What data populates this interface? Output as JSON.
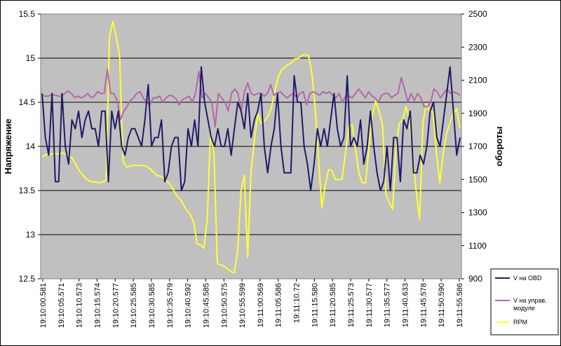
{
  "chart_data": {
    "type": "line",
    "ylabel_left": "Напряжение",
    "ylabel_right": "обороты",
    "y_left_lim": [
      12.5,
      15.5
    ],
    "y_right_lim": [
      900,
      2500
    ],
    "y_left_ticks": [
      "12.5",
      "13",
      "13.5",
      "14",
      "14.5",
      "15",
      "15.5"
    ],
    "y_right_ticks": [
      "900",
      "1100",
      "1300",
      "1500",
      "1700",
      "1900",
      "2100",
      "2300",
      "2500"
    ],
    "x_tick_labels": [
      "19:10:00.581",
      "19:10:05.571",
      "19:10:10.573",
      "19:10:15.574",
      "19:10:20.577",
      "19:10:25.585",
      "19:10:30.585",
      "19:10:35.579",
      "19:10:40.592",
      "19:10:45.585",
      "19:10:50.575",
      "19:10:55.599",
      "19:11:00.569",
      "19:11:05.586",
      "19:11:10.72",
      "19:11:15.580",
      "19:11:20.585",
      "19:11:25.573",
      "19:11:30.577",
      "19:11:35.577",
      "19:11:40.633",
      "19:11:45.578",
      "19:11:50.590",
      "19:11:55.586"
    ],
    "grid": "horizontal",
    "legend_position": "right",
    "plot_background": "#c0c0c0",
    "series": [
      {
        "name": "V на OBD",
        "color": "#1f1a6b",
        "axis": "left",
        "values": [
          14.6,
          14.1,
          13.9,
          14.6,
          13.6,
          13.6,
          14.6,
          14.0,
          13.8,
          14.3,
          14.2,
          14.4,
          14.1,
          14.3,
          14.4,
          14.2,
          14.2,
          14.0,
          14.4,
          14.4,
          13.6,
          14.4,
          14.2,
          14.4,
          14.0,
          13.9,
          14.1,
          14.2,
          14.2,
          14.1,
          14.0,
          14.3,
          14.7,
          14.0,
          14.1,
          14.1,
          14.3,
          13.6,
          13.7,
          14.0,
          14.1,
          14.1,
          13.5,
          13.6,
          14.2,
          14.0,
          14.3,
          14.0,
          14.9,
          14.5,
          14.3,
          14.1,
          14.0,
          14.2,
          14.0,
          14.0,
          14.2,
          13.9,
          14.2,
          14.5,
          14.4,
          14.2,
          14.6,
          14.1,
          14.3,
          14.4,
          14.6,
          14.0,
          13.7,
          14.0,
          14.2,
          14.6,
          14.0,
          13.7,
          13.7,
          13.7,
          14.8,
          14.5,
          14.5,
          14.0,
          13.8,
          13.5,
          13.8,
          14.2,
          14.0,
          14.2,
          14.0,
          14.3,
          14.6,
          14.2,
          14.0,
          14.1,
          14.8,
          14.0,
          14.1,
          14.0,
          14.3,
          13.8,
          14.0,
          14.4,
          14.0,
          13.7,
          13.5,
          13.6,
          14.0,
          13.5,
          14.1,
          14.1,
          13.6,
          14.3,
          14.2,
          14.4,
          13.7,
          13.7,
          13.9,
          13.8,
          14.0,
          14.4,
          14.5,
          14.1,
          14.0,
          14.3,
          14.6,
          14.9,
          14.4,
          13.9,
          14.1
        ]
      },
      {
        "name": "V на управ. модуле",
        "color": "#b467a8",
        "axis": "left",
        "values": [
          14.58,
          14.57,
          14.57,
          14.59,
          14.58,
          14.57,
          14.57,
          14.6,
          14.63,
          14.6,
          14.55,
          14.57,
          14.55,
          14.57,
          14.6,
          14.55,
          14.57,
          14.62,
          14.6,
          14.6,
          14.87,
          14.6,
          14.6,
          14.52,
          14.3,
          14.4,
          14.45,
          14.52,
          14.55,
          14.6,
          14.62,
          14.55,
          14.5,
          14.47,
          14.55,
          14.55,
          14.57,
          14.5,
          14.55,
          14.58,
          14.57,
          14.54,
          14.47,
          14.53,
          14.55,
          14.57,
          14.5,
          14.6,
          14.85,
          14.55,
          14.6,
          14.55,
          14.5,
          14.22,
          14.6,
          14.55,
          14.5,
          14.4,
          14.6,
          14.65,
          14.6,
          14.4,
          14.62,
          14.72,
          14.6,
          14.58,
          14.6,
          14.6,
          14.57,
          14.6,
          14.7,
          14.58,
          14.6,
          14.62,
          14.58,
          14.55,
          14.58,
          14.6,
          14.55,
          14.6,
          14.62,
          14.47,
          14.6,
          14.62,
          14.6,
          14.58,
          14.62,
          14.6,
          14.62,
          14.58,
          14.55,
          14.6,
          14.5,
          14.57,
          14.57,
          14.55,
          14.6,
          14.65,
          14.6,
          14.55,
          14.62,
          14.57,
          14.55,
          14.5,
          14.58,
          14.6,
          14.6,
          14.55,
          14.58,
          14.6,
          14.78,
          14.65,
          14.5,
          14.6,
          14.52,
          14.6,
          14.55,
          14.45,
          14.45,
          14.5,
          14.65,
          14.62,
          14.55,
          14.6,
          14.65,
          14.6,
          14.62,
          14.6,
          14.58
        ]
      },
      {
        "name": "RPM",
        "color": "#ffff33",
        "axis": "right",
        "values": [
          1635,
          1650,
          1650,
          1655,
          1655,
          1655,
          1660,
          1655,
          1645,
          1625,
          1590,
          1555,
          1530,
          1505,
          1490,
          1485,
          1485,
          1480,
          1485,
          1495,
          2360,
          2455,
          2360,
          2255,
          1610,
          1575,
          1580,
          1585,
          1585,
          1585,
          1585,
          1580,
          1565,
          1545,
          1525,
          1520,
          1510,
          1490,
          1470,
          1435,
          1400,
          1380,
          1345,
          1310,
          1290,
          1240,
          1110,
          1105,
          1085,
          1255,
          1790,
          1655,
          990,
          985,
          975,
          960,
          945,
          935,
          1060,
          1430,
          1525,
          1030,
          1550,
          1740,
          1900,
          1840,
          1855,
          1880,
          1930,
          2030,
          2115,
          2160,
          2180,
          2195,
          2205,
          2230,
          2230,
          2250,
          2255,
          2250,
          2150,
          1940,
          1640,
          1330,
          1460,
          1560,
          1555,
          1500,
          1500,
          1500,
          1660,
          1820,
          1830,
          1680,
          1540,
          1480,
          1480,
          1700,
          1890,
          1975,
          1910,
          1830,
          1410,
          1360,
          1320,
          1700,
          1840,
          1860,
          1940,
          1860,
          1650,
          1430,
          1260,
          1840,
          1960,
          1910,
          1910,
          1660,
          1480,
          1660,
          1780,
          1840,
          1900,
          1930,
          1810
        ]
      }
    ]
  }
}
